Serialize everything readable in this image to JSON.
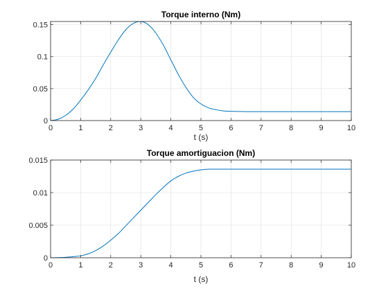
{
  "figure": {
    "background": "#ffffff"
  },
  "chart_data": [
    {
      "type": "line",
      "title": "Torque interno (Nm)",
      "xlabel": "t (s)",
      "ylabel": "",
      "xlim": [
        0,
        10
      ],
      "ylim": [
        0,
        0.155
      ],
      "xticks": [
        "0",
        "1",
        "2",
        "3",
        "4",
        "5",
        "6",
        "7",
        "8",
        "9",
        "10"
      ],
      "xtick_values": [
        0,
        1,
        2,
        3,
        4,
        5,
        6,
        7,
        8,
        9,
        10
      ],
      "yticks": [
        "0",
        "0.05",
        "0.1",
        "0.15"
      ],
      "ytick_values": [
        0,
        0.05,
        0.1,
        0.15
      ],
      "grid": true,
      "line_color": "#0072bd",
      "series": [
        {
          "x": [
            0,
            0.25,
            0.5,
            0.75,
            1,
            1.25,
            1.5,
            1.75,
            2,
            2.25,
            2.5,
            2.75,
            3,
            3.25,
            3.5,
            3.75,
            4,
            4.25,
            4.5,
            4.75,
            5,
            5.25,
            5.5,
            5.75,
            6,
            6.5,
            7,
            7.5,
            8,
            8.5,
            9,
            9.5,
            10
          ],
          "values": [
            0,
            0.002,
            0.008,
            0.018,
            0.032,
            0.048,
            0.066,
            0.087,
            0.107,
            0.126,
            0.142,
            0.152,
            0.155,
            0.15,
            0.137,
            0.118,
            0.095,
            0.072,
            0.052,
            0.036,
            0.026,
            0.02,
            0.017,
            0.015,
            0.0145,
            0.014,
            0.014,
            0.014,
            0.014,
            0.014,
            0.014,
            0.014,
            0.014
          ]
        }
      ]
    },
    {
      "type": "line",
      "title": "Torque amortiguacion (Nm)",
      "xlabel": "t (s)",
      "ylabel": "",
      "xlim": [
        0,
        10
      ],
      "ylim": [
        0,
        0.015
      ],
      "xticks": [
        "0",
        "1",
        "2",
        "3",
        "4",
        "5",
        "6",
        "7",
        "8",
        "9",
        "10"
      ],
      "xtick_values": [
        0,
        1,
        2,
        3,
        4,
        5,
        6,
        7,
        8,
        9,
        10
      ],
      "yticks": [
        "0",
        "0.005",
        "0.01",
        "0.015"
      ],
      "ytick_values": [
        0,
        0.005,
        0.01,
        0.015
      ],
      "grid": true,
      "line_color": "#0072bd",
      "series": [
        {
          "x": [
            0,
            0.25,
            0.5,
            0.75,
            1,
            1.25,
            1.5,
            1.75,
            2,
            2.25,
            2.5,
            2.75,
            3,
            3.25,
            3.5,
            3.75,
            4,
            4.25,
            4.5,
            4.75,
            5,
            5.25,
            5.5,
            5.75,
            6,
            6.5,
            7,
            7.5,
            8,
            8.5,
            9,
            9.5,
            10
          ],
          "values": [
            0,
            2e-05,
            7e-05,
            0.00017,
            0.0003,
            0.0006,
            0.0011,
            0.0018,
            0.0027,
            0.0037,
            0.0049,
            0.0061,
            0.0073,
            0.0085,
            0.0097,
            0.0108,
            0.0118,
            0.0125,
            0.013,
            0.0133,
            0.0135,
            0.0136,
            0.0136,
            0.0136,
            0.0136,
            0.0136,
            0.0136,
            0.0136,
            0.0136,
            0.0136,
            0.0136,
            0.0136,
            0.0136
          ]
        }
      ]
    }
  ]
}
